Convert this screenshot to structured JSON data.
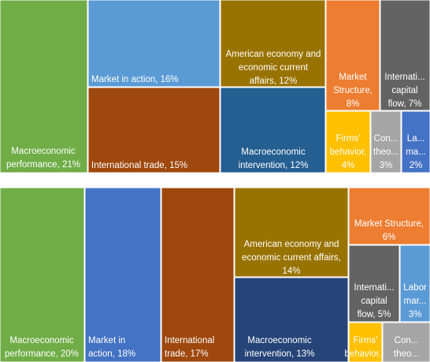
{
  "chart_data": [
    {
      "type": "treemap",
      "labels": [
        [
          "Macroeconomic",
          "performance, 21%"
        ],
        [
          "Market in action, 16%"
        ],
        [
          "International  trade, 15%"
        ],
        [
          "American economy and",
          "economic current",
          "affairs, 12%"
        ],
        [
          "Macroeconomic",
          "intervention, 12%"
        ],
        [
          "Market",
          "Structure,",
          "8%"
        ],
        [
          "Internati...",
          "capital",
          "flow, 7%"
        ],
        [
          "Firms'",
          "behavior,",
          "4%"
        ],
        [
          "Con...",
          "theo...",
          "3%"
        ],
        [
          "La...",
          "ma...",
          "2%"
        ]
      ],
      "values": [
        21,
        16,
        15,
        12,
        12,
        8,
        7,
        4,
        3,
        2
      ],
      "colors": [
        "#70ad47",
        "#5b9bd5",
        "#9e480e",
        "#997300",
        "#255e91",
        "#ed7d31",
        "#636363",
        "#ffc000",
        "#a5a5a5",
        "#4472c4"
      ]
    },
    {
      "type": "treemap",
      "labels": [
        [
          "Macroeconomic",
          "performance, 20%"
        ],
        [
          "Market in",
          "action, 18%"
        ],
        [
          "International",
          "trade, 17%"
        ],
        [
          "American economy and",
          "economic current affairs,",
          "14%"
        ],
        [
          "Macroeconomic",
          "intervention, 13%"
        ],
        [
          "Market Structure,",
          "6%"
        ],
        [
          "Internati...",
          "capital",
          "flow, 5%"
        ],
        [
          "Labor",
          "mar...",
          "3%"
        ],
        [
          "Firms'",
          "behavior..."
        ],
        [
          "Con...",
          "theo..."
        ]
      ],
      "values": [
        20,
        18,
        17,
        14,
        13,
        6,
        5,
        3,
        2,
        2
      ],
      "colors": [
        "#70ad47",
        "#4472c4",
        "#9e480e",
        "#997300",
        "#264478",
        "#ed7d31",
        "#636363",
        "#5b9bd5",
        "#ffc000",
        "#a5a5a5"
      ]
    }
  ]
}
